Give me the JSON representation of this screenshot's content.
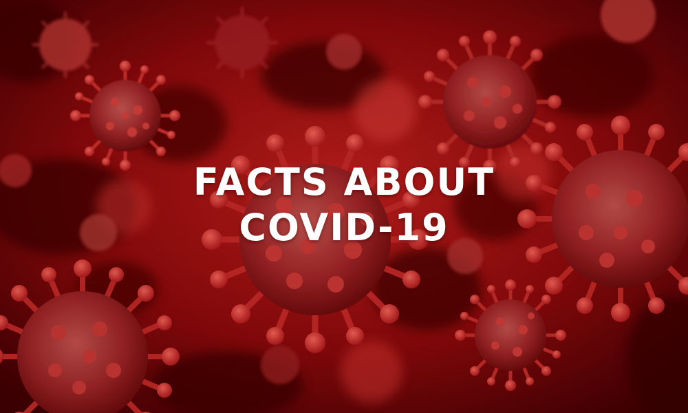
{
  "headline": {
    "line1": "FACTS ABOUT",
    "line2": "COVID-19"
  },
  "image": {
    "subject": "coronavirus-particles-icon"
  },
  "colors": {
    "background_dark": "#4a0003",
    "background_mid": "#9d0a0c",
    "background_light": "#d8322c",
    "virus_body": "#b8262a",
    "virus_spike": "#e03a36",
    "text": "#ffffff"
  }
}
